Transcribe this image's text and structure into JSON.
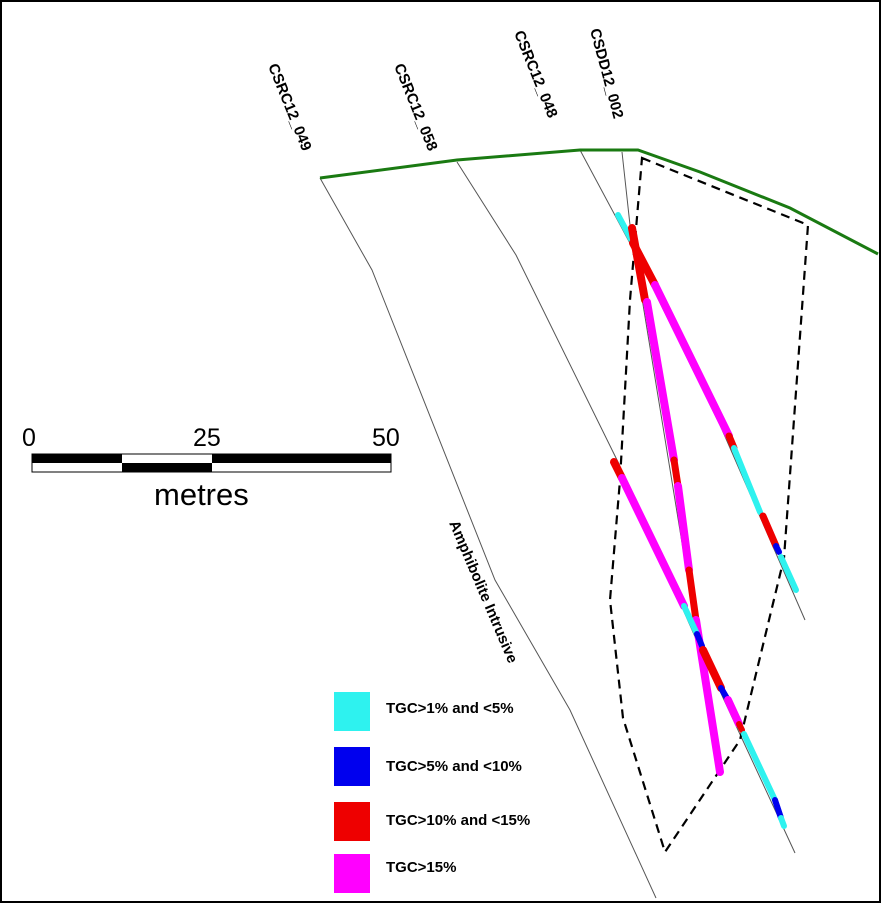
{
  "drillholes": [
    {
      "id": "CSRC12_049",
      "label": "CSRC12_049"
    },
    {
      "id": "CSRC12_058",
      "label": "CSRC12_058"
    },
    {
      "id": "CSRC12_048",
      "label": "CSRC12_048"
    },
    {
      "id": "CSDD12_002",
      "label": "CSDD12_002"
    }
  ],
  "scale_bar": {
    "ticks": [
      "0",
      "25",
      "50"
    ],
    "unit": "metres"
  },
  "rock_label": "Amphibolite Intrusive",
  "legend": [
    {
      "label": "TGC>1% and <5%",
      "color": "#2ef2ef"
    },
    {
      "label": "TGC>5% and <10%",
      "color": "#0000ee"
    },
    {
      "label": "TGC>10% and <15%",
      "color": "#ee0000"
    },
    {
      "label": "TGC>15%",
      "color": "#ff00ff"
    }
  ],
  "colors": {
    "topography": "#1a7a12",
    "orebody_outline": "#000000",
    "trace": "#555555"
  }
}
